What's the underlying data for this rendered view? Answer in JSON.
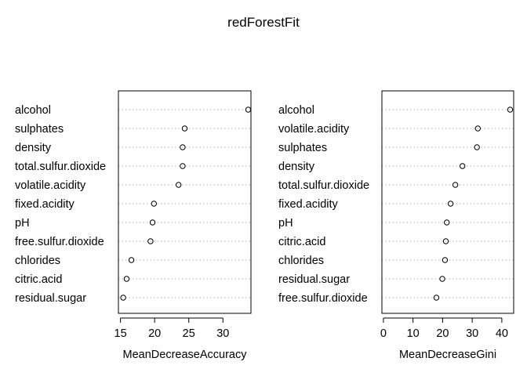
{
  "title": "redForestFit",
  "chart_data": [
    {
      "type": "scatter",
      "xlabel": "MeanDecreaseAccuracy",
      "xlim": [
        14.7,
        34.1
      ],
      "xticks": [
        15,
        20,
        25,
        30
      ],
      "grid": "dotted horizontal",
      "categories": [
        "alcohol",
        "sulphates",
        "density",
        "total.sulfur.dioxide",
        "volatile.acidity",
        "fixed.acidity",
        "pH",
        "free.sulfur.dioxide",
        "chlorides",
        "citric.acid",
        "residual.sugar"
      ],
      "values": [
        33.7,
        24.4,
        24.1,
        24.1,
        23.5,
        19.9,
        19.7,
        19.4,
        16.6,
        15.9,
        15.4
      ]
    },
    {
      "type": "scatter",
      "xlabel": "MeanDecreaseGini",
      "xlim": [
        -0.5,
        44.0
      ],
      "xticks": [
        0,
        10,
        20,
        30,
        40
      ],
      "grid": "dotted horizontal",
      "categories": [
        "alcohol",
        "volatile.acidity",
        "sulphates",
        "density",
        "total.sulfur.dioxide",
        "fixed.acidity",
        "pH",
        "citric.acid",
        "chlorides",
        "residual.sugar",
        "free.sulfur.dioxide"
      ],
      "values": [
        42.8,
        31.9,
        31.6,
        26.7,
        24.3,
        22.7,
        21.4,
        21.1,
        20.8,
        19.9,
        17.9
      ]
    }
  ]
}
